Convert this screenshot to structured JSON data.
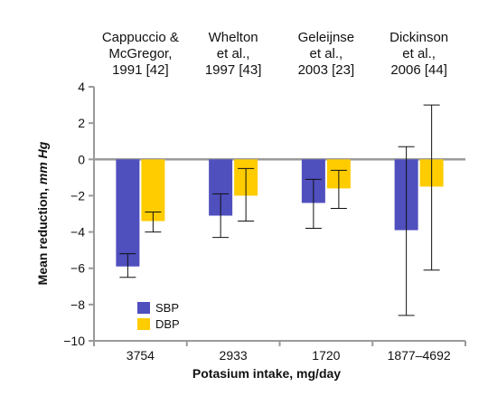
{
  "chart_data": {
    "type": "bar",
    "title": "",
    "xlabel": "Potasium intake, mg/day",
    "ylabel_main": "Mean reduction, ",
    "ylabel_unit": "mm Hg",
    "ylim": [
      -10,
      4
    ],
    "yticks": [
      "4",
      "2",
      "0",
      "−2",
      "−4",
      "−6",
      "−8",
      "−10"
    ],
    "ytick_values": [
      4,
      2,
      0,
      -2,
      -4,
      -6,
      -8,
      -10
    ],
    "grid": false,
    "legend_position": "bottom-left",
    "categories": [
      "3754",
      "2933",
      "1720",
      "1877–4692"
    ],
    "studies": [
      [
        "Cappuccio &",
        "McGregor,",
        "1991 [42]"
      ],
      [
        "Whelton",
        "et al.,",
        "1997 [43]"
      ],
      [
        "Geleijnse",
        "et al.,",
        "2003 [23]"
      ],
      [
        "Dickinson",
        "et al.,",
        "2006 [44]"
      ]
    ],
    "series": [
      {
        "name": "SBP",
        "color": "#4f4fbe",
        "values": [
          -5.9,
          -3.1,
          -2.4,
          -3.9
        ],
        "error_low": [
          -6.5,
          -4.3,
          -3.8,
          -8.6
        ],
        "error_high": [
          -5.2,
          -1.9,
          -1.1,
          0.7
        ]
      },
      {
        "name": "DBP",
        "color": "#ffcc00",
        "values": [
          -3.4,
          -2.0,
          -1.6,
          -1.5
        ],
        "error_low": [
          -4.0,
          -3.4,
          -2.7,
          -6.1
        ],
        "error_high": [
          -2.9,
          -0.5,
          -0.6,
          3.0
        ]
      }
    ]
  }
}
